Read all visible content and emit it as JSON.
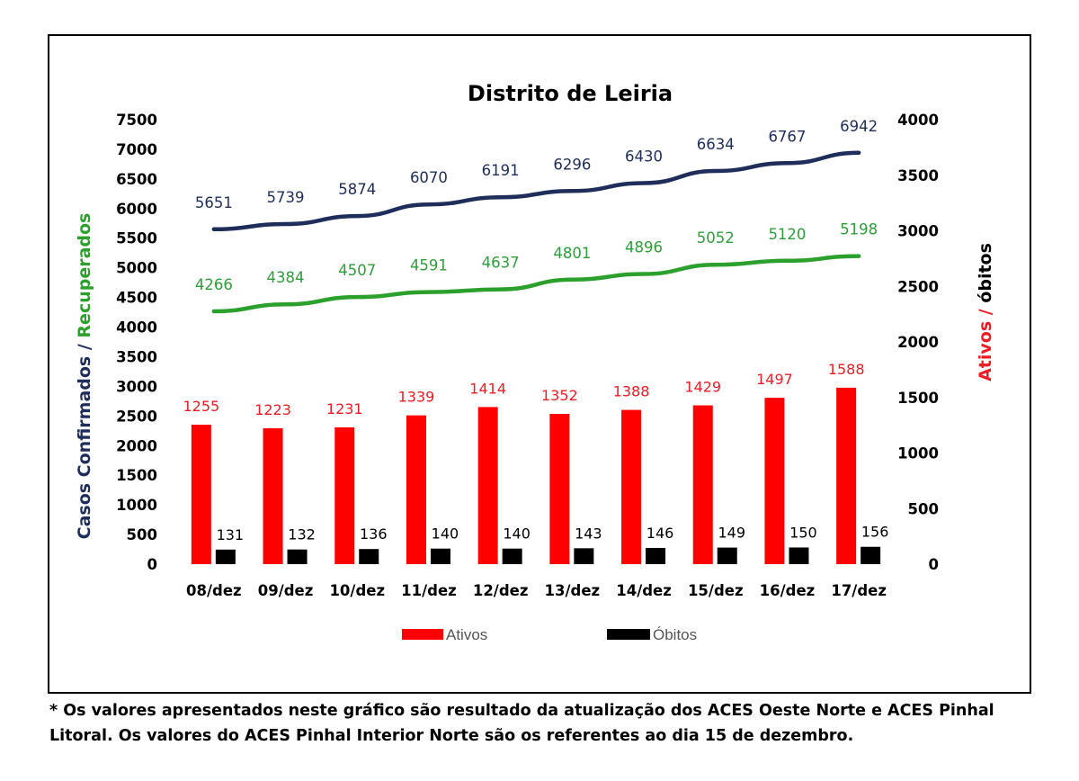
{
  "chart_data": {
    "type": "bar",
    "title": "Distrito de Leiria",
    "categories": [
      "08/dez",
      "09/dez",
      "10/dez",
      "11/dez",
      "12/dez",
      "13/dez",
      "14/dez",
      "15/dez",
      "16/dez",
      "17/dez"
    ],
    "y_left": {
      "label_part1": "Casos Confirmados",
      "label_sep": " / ",
      "label_part2": "Recuperados",
      "range": [
        0,
        7500
      ],
      "ticks": [
        0,
        500,
        1000,
        1500,
        2000,
        2500,
        3000,
        3500,
        4000,
        4500,
        5000,
        5500,
        6000,
        6500,
        7000,
        7500
      ]
    },
    "y_right": {
      "label_part1": "Ativos",
      "label_sep": " / ",
      "label_part2": "óbitos",
      "range": [
        0,
        4000
      ],
      "ticks": [
        0,
        500,
        1000,
        1500,
        2000,
        2500,
        3000,
        3500,
        4000
      ]
    },
    "series": [
      {
        "name": "Casos Confirmados",
        "type": "line",
        "axis": "left",
        "color": "#1f2d5a",
        "values": [
          5651,
          5739,
          5874,
          6070,
          6191,
          6296,
          6430,
          6634,
          6767,
          6942
        ]
      },
      {
        "name": "Recuperados",
        "type": "line",
        "axis": "left",
        "color": "#2ca02c",
        "values": [
          4266,
          4384,
          4507,
          4591,
          4637,
          4801,
          4896,
          5052,
          5120,
          5198
        ]
      },
      {
        "name": "Ativos",
        "type": "bar",
        "axis": "right",
        "color": "#ff0000",
        "values": [
          1255,
          1223,
          1231,
          1339,
          1414,
          1352,
          1388,
          1429,
          1497,
          1588
        ]
      },
      {
        "name": "Óbitos",
        "type": "bar",
        "axis": "right",
        "color": "#000000",
        "values": [
          131,
          132,
          136,
          140,
          140,
          143,
          146,
          149,
          150,
          156
        ]
      }
    ],
    "legend": {
      "entries": [
        "Ativos",
        "Óbitos"
      ],
      "position": "bottom"
    },
    "grid": false
  },
  "footnote": {
    "line1": "* Os valores apresentados neste gráfico são resultado da atualização dos ACES Oeste Norte e ACES Pinhal",
    "line2": "Litoral. Os valores do ACES Pinhal Interior Norte são os referentes ao dia 15 de dezembro."
  }
}
